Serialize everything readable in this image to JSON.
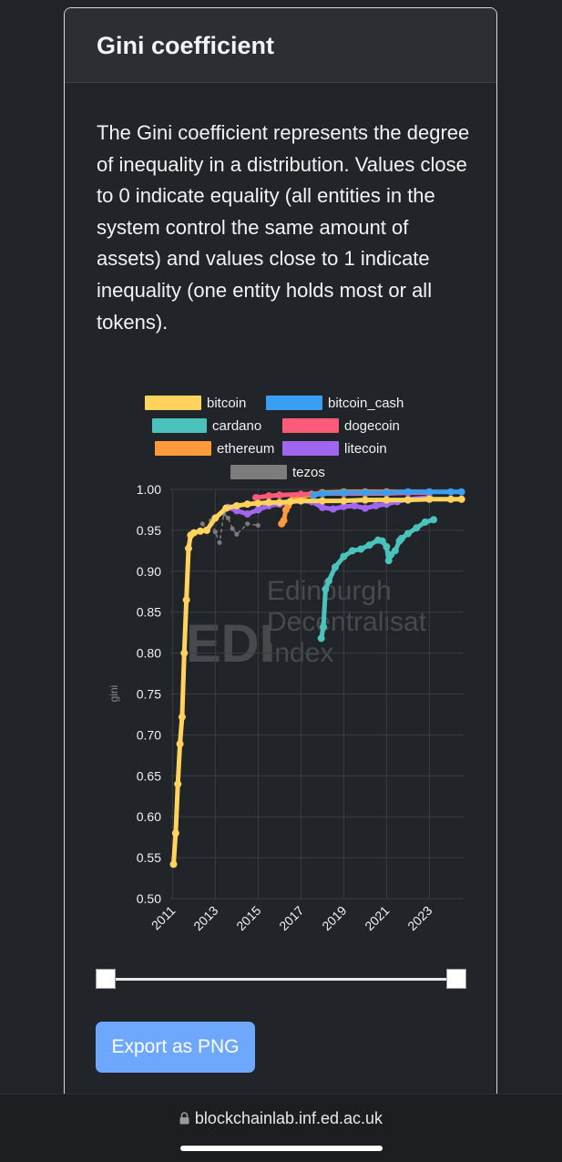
{
  "card": {
    "title": "Gini coefficient",
    "description": "The Gini coefficient represents the degree of inequality in a distribution. Values close to 0 indicate equality (all entities in the system control the same amount of assets) and values close to 1 indicate inequality (one entity holds most or all tokens)."
  },
  "watermark": {
    "line1": "Edinburgh",
    "line2": "Decentralisat",
    "line3": "Index",
    "logo": "EDI"
  },
  "export_button": {
    "label": "Export as PNG"
  },
  "browser": {
    "url": "blockchainlab.inf.ed.ac.uk",
    "lock_icon": "lock-icon"
  },
  "range_slider": {
    "start": 0,
    "end": 1
  },
  "chart_data": {
    "type": "line",
    "title": "",
    "xlabel": "",
    "ylabel": "gini",
    "ylim": [
      0.5,
      1.0
    ],
    "xlim": [
      2010.9,
      2024.6
    ],
    "x_ticks": [
      "2011",
      "2013",
      "2015",
      "2017",
      "2019",
      "2021",
      "2023"
    ],
    "y_ticks": [
      "0.50",
      "0.55",
      "0.60",
      "0.65",
      "0.70",
      "0.75",
      "0.80",
      "0.85",
      "0.90",
      "0.95",
      "1.00"
    ],
    "legend_placement": "top-center",
    "grid": true,
    "series": [
      {
        "name": "bitcoin",
        "color": "#ffd35c",
        "x": [
          2011.05,
          2011.15,
          2011.25,
          2011.35,
          2011.45,
          2011.55,
          2011.65,
          2011.75,
          2011.85,
          2012.0,
          2012.3,
          2012.6,
          2013.0,
          2013.5,
          2014.0,
          2014.5,
          2015.0,
          2015.5,
          2016.0,
          2016.5,
          2017.0,
          2018.0,
          2019.0,
          2020.0,
          2021.0,
          2022.0,
          2023.0,
          2024.0,
          2024.5
        ],
        "y": [
          0.542,
          0.58,
          0.64,
          0.689,
          0.722,
          0.8,
          0.865,
          0.928,
          0.944,
          0.947,
          0.949,
          0.95,
          0.965,
          0.977,
          0.98,
          0.982,
          0.983,
          0.984,
          0.984,
          0.985,
          0.986,
          0.986,
          0.986,
          0.987,
          0.987,
          0.987,
          0.988,
          0.988,
          0.988
        ]
      },
      {
        "name": "bitcoin_cash",
        "color": "#3a9ff2",
        "x": [
          2017.6,
          2018.0,
          2019.0,
          2020.0,
          2021.0,
          2022.0,
          2023.0,
          2024.0,
          2024.5
        ],
        "y": [
          0.993,
          0.995,
          0.996,
          0.996,
          0.996,
          0.997,
          0.997,
          0.997,
          0.997
        ]
      },
      {
        "name": "cardano",
        "color": "#4ac3bd",
        "x": [
          2017.95,
          2018.05,
          2018.15,
          2018.3,
          2018.6,
          2019.0,
          2019.4,
          2019.8,
          2020.2,
          2020.6,
          2020.8,
          2021.0,
          2021.1,
          2021.2,
          2021.4,
          2021.6,
          2021.7,
          2022.0,
          2022.4,
          2022.8,
          2023.2
        ],
        "y": [
          0.818,
          0.832,
          0.878,
          0.888,
          0.905,
          0.918,
          0.925,
          0.927,
          0.932,
          0.938,
          0.937,
          0.93,
          0.913,
          0.92,
          0.925,
          0.937,
          0.94,
          0.946,
          0.953,
          0.96,
          0.963
        ]
      },
      {
        "name": "dogecoin",
        "color": "#fb5a78",
        "x": [
          2014.9,
          2015.5,
          2016.0,
          2017.0,
          2018.0,
          2019.0,
          2020.0,
          2021.0,
          2022.0,
          2023.0
        ],
        "y": [
          0.99,
          0.992,
          0.993,
          0.994,
          0.995,
          0.995,
          0.995,
          0.995,
          0.996,
          0.996
        ]
      },
      {
        "name": "ethereum",
        "color": "#ff9a3c",
        "x": [
          2016.1,
          2016.2,
          2016.3,
          2016.4,
          2016.6,
          2017.0,
          2017.5,
          2018.0,
          2019.0,
          2020.0,
          2021.0,
          2022.0,
          2023.0
        ],
        "y": [
          0.958,
          0.962,
          0.975,
          0.98,
          0.987,
          0.99,
          0.994,
          0.996,
          0.997,
          0.997,
          0.997,
          0.997,
          0.997
        ]
      },
      {
        "name": "litecoin",
        "color": "#a066f0",
        "x": [
          2013.6,
          2014.0,
          2014.5,
          2015.0,
          2015.5,
          2016.0,
          2016.5,
          2017.0,
          2017.5,
          2018.0,
          2018.5,
          2019.0,
          2019.5,
          2020.0,
          2020.5,
          2021.0,
          2021.5,
          2022.0,
          2023.0
        ],
        "y": [
          0.978,
          0.974,
          0.97,
          0.975,
          0.98,
          0.982,
          0.985,
          0.986,
          0.985,
          0.978,
          0.976,
          0.979,
          0.98,
          0.977,
          0.98,
          0.982,
          0.985,
          0.988,
          0.99
        ]
      },
      {
        "name": "tezos",
        "color": "#7c7c7c",
        "x": [
          2012.4,
          2012.6,
          2012.8,
          2013.0,
          2013.2,
          2013.4,
          2013.6,
          2013.8,
          2014.0,
          2014.5,
          2015.0
        ],
        "y": [
          0.958,
          0.951,
          0.962,
          0.948,
          0.935,
          0.97,
          0.965,
          0.952,
          0.945,
          0.958,
          0.956
        ]
      }
    ]
  }
}
